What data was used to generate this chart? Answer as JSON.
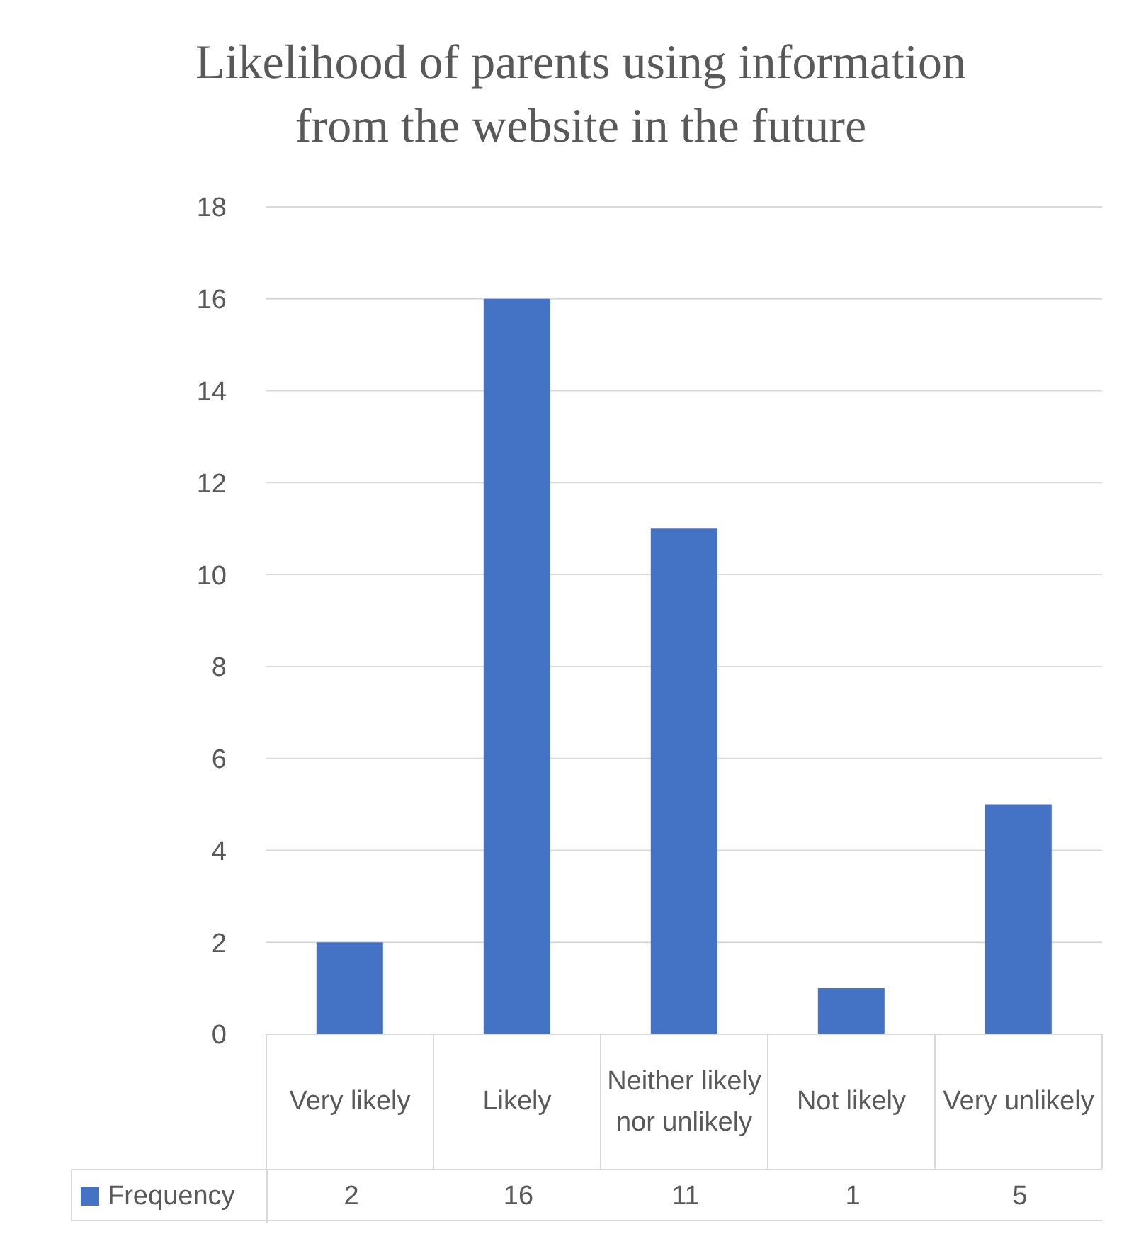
{
  "chart_data": {
    "type": "bar",
    "title": "Likelihood of parents using information from the website in the future",
    "categories": [
      "Very likely",
      "Likely",
      "Neither likely nor unlikely",
      "Not likely",
      "Very unlikely"
    ],
    "series": [
      {
        "name": "Frequency",
        "color": "#4472c4",
        "values": [
          2,
          16,
          11,
          1,
          5
        ]
      }
    ],
    "ylim": [
      0,
      18
    ],
    "yticks": [
      0,
      2,
      4,
      6,
      8,
      10,
      12,
      14,
      16,
      18
    ],
    "grid": "y",
    "legend": "bottom",
    "data_labels": true
  }
}
